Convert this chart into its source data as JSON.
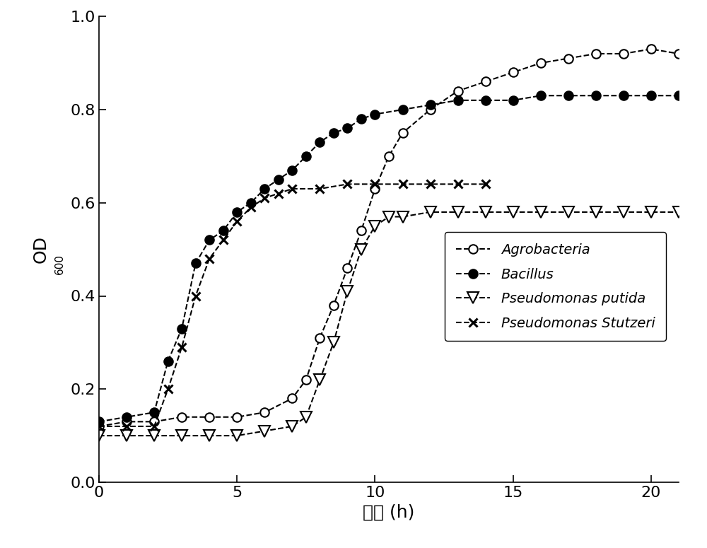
{
  "agrobacteria_x": [
    0,
    1,
    2,
    3,
    4,
    5,
    6,
    7,
    7.5,
    8,
    8.5,
    9,
    9.5,
    10,
    10.5,
    11,
    12,
    13,
    14,
    15,
    16,
    17,
    18,
    19,
    20,
    21
  ],
  "agrobacteria_y": [
    0.12,
    0.13,
    0.13,
    0.14,
    0.14,
    0.14,
    0.15,
    0.18,
    0.22,
    0.31,
    0.38,
    0.46,
    0.54,
    0.63,
    0.7,
    0.75,
    0.8,
    0.84,
    0.86,
    0.88,
    0.9,
    0.91,
    0.92,
    0.92,
    0.93,
    0.92
  ],
  "bacillus_x": [
    0,
    1,
    2,
    2.5,
    3,
    3.5,
    4,
    4.5,
    5,
    5.5,
    6,
    6.5,
    7,
    7.5,
    8,
    8.5,
    9,
    9.5,
    10,
    11,
    12,
    13,
    14,
    15,
    16,
    17,
    18,
    19,
    20,
    21
  ],
  "bacillus_y": [
    0.13,
    0.14,
    0.15,
    0.26,
    0.33,
    0.47,
    0.52,
    0.54,
    0.58,
    0.6,
    0.63,
    0.65,
    0.67,
    0.7,
    0.73,
    0.75,
    0.76,
    0.78,
    0.79,
    0.8,
    0.81,
    0.82,
    0.82,
    0.82,
    0.83,
    0.83,
    0.83,
    0.83,
    0.83,
    0.83
  ],
  "putida_x": [
    0,
    1,
    2,
    3,
    4,
    5,
    6,
    7,
    7.5,
    8,
    8.5,
    9,
    9.5,
    10,
    10.5,
    11,
    12,
    13,
    14,
    15,
    16,
    17,
    18,
    19,
    20,
    21
  ],
  "putida_y": [
    0.1,
    0.1,
    0.1,
    0.1,
    0.1,
    0.1,
    0.11,
    0.12,
    0.14,
    0.22,
    0.3,
    0.41,
    0.5,
    0.55,
    0.57,
    0.57,
    0.58,
    0.58,
    0.58,
    0.58,
    0.58,
    0.58,
    0.58,
    0.58,
    0.58,
    0.58
  ],
  "stutzeri_x": [
    0,
    1,
    2,
    2.5,
    3,
    3.5,
    4,
    4.5,
    5,
    5.5,
    6,
    6.5,
    7,
    8,
    9,
    10,
    11,
    12,
    13,
    14
  ],
  "stutzeri_y": [
    0.12,
    0.12,
    0.12,
    0.2,
    0.29,
    0.4,
    0.48,
    0.52,
    0.56,
    0.59,
    0.61,
    0.62,
    0.63,
    0.63,
    0.64,
    0.64,
    0.64,
    0.64,
    0.64,
    0.64
  ],
  "xlabel": "时间 (h)",
  "xlim": [
    0,
    21
  ],
  "ylim": [
    0.0,
    1.0
  ],
  "xticks": [
    0,
    5,
    10,
    15,
    20
  ],
  "yticks": [
    0.0,
    0.2,
    0.4,
    0.6,
    0.8,
    1.0
  ],
  "legend_labels": [
    "Agrobacteria",
    "Bacillus",
    "Pseudomonas putida",
    "Pseudomonas Stutzeri"
  ],
  "line_color": "#000000",
  "marker_size": 9,
  "line_width": 1.5
}
